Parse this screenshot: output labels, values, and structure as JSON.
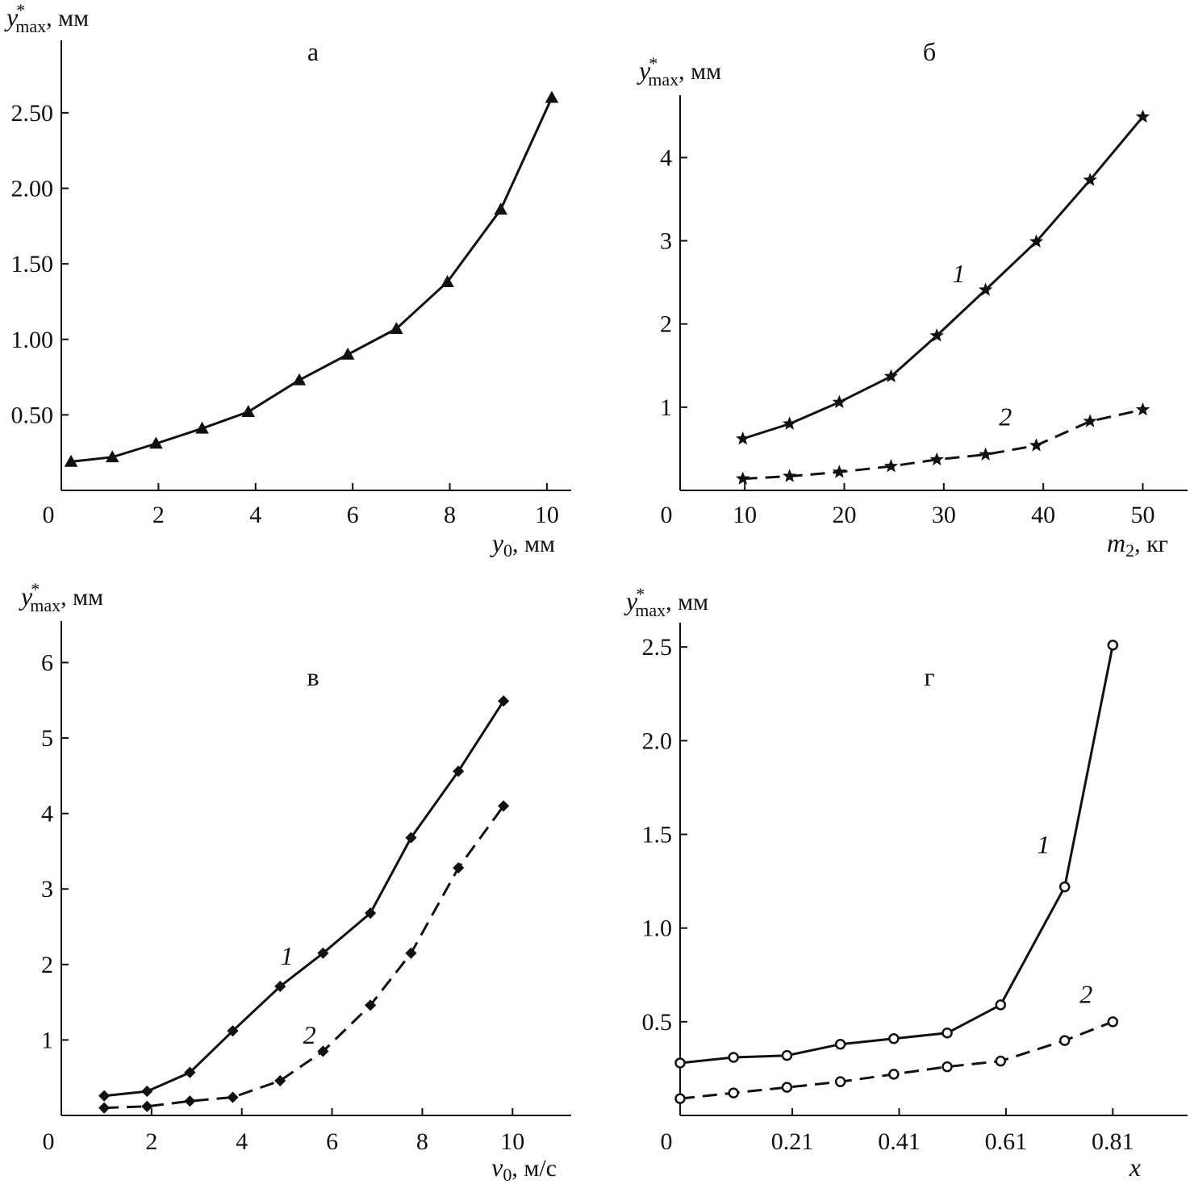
{
  "chart_data": [
    {
      "id": "a",
      "type": "line",
      "panel_letter": "а",
      "ylabel": {
        "var": "y",
        "sup": "*",
        "sub": "max",
        "unit": ", мм"
      },
      "xlabel": {
        "var": "y",
        "sub": "0",
        "unit": ", мм"
      },
      "xlim": [
        0,
        10.5
      ],
      "ylim": [
        0,
        2.98
      ],
      "x_zero_label": "0",
      "xticks": [
        2,
        4,
        6,
        8,
        10
      ],
      "xtick_labels": [
        "2",
        "4",
        "6",
        "8",
        "10"
      ],
      "yticks": [
        0.5,
        1.0,
        1.5,
        2.0,
        2.5
      ],
      "ytick_labels": [
        "0.50",
        "1.00",
        "1.50",
        "2.00",
        "2.50"
      ],
      "series": [
        {
          "name": "",
          "style": "solid",
          "marker": "triangle",
          "x": [
            0.2,
            1.05,
            1.95,
            2.9,
            3.85,
            4.9,
            5.9,
            6.9,
            7.95,
            9.05,
            10.1
          ],
          "y": [
            0.19,
            0.22,
            0.31,
            0.41,
            0.52,
            0.73,
            0.9,
            1.07,
            1.38,
            1.86,
            2.6
          ]
        }
      ]
    },
    {
      "id": "b",
      "type": "line",
      "panel_letter": "б",
      "ylabel": {
        "var": "y",
        "sup": "*",
        "sub": "max",
        "unit": ", мм"
      },
      "xlabel": {
        "var": "m",
        "sub": "2",
        "unit": ", кг"
      },
      "xlim": [
        3.5,
        54.5
      ],
      "ylim": [
        0,
        4.75
      ],
      "x_zero_label": "0",
      "xticks": [
        10,
        20,
        30,
        40,
        50
      ],
      "xtick_labels": [
        "10",
        "20",
        "30",
        "40",
        "50"
      ],
      "yticks": [
        1,
        2,
        3,
        4
      ],
      "ytick_labels": [
        "1",
        "2",
        "3",
        "4"
      ],
      "series": [
        {
          "name": "1",
          "style": "solid",
          "marker": "star",
          "x": [
            9.8,
            14.5,
            19.5,
            24.7,
            29.3,
            34.2,
            39.3,
            44.7,
            50.0
          ],
          "y": [
            0.62,
            0.8,
            1.06,
            1.37,
            1.86,
            2.41,
            2.99,
            3.73,
            4.49
          ]
        },
        {
          "name": "2",
          "style": "dash",
          "marker": "star",
          "x": [
            9.8,
            14.5,
            19.5,
            24.7,
            29.3,
            34.2,
            39.3,
            44.7,
            50.0
          ],
          "y": [
            0.14,
            0.17,
            0.22,
            0.29,
            0.37,
            0.43,
            0.54,
            0.83,
            0.97
          ]
        }
      ],
      "curve_label_pos": [
        [
          31.5,
          2.5
        ],
        [
          36.2,
          0.78
        ]
      ]
    },
    {
      "id": "c",
      "type": "line",
      "panel_letter": "в",
      "ylabel": {
        "var": "y",
        "sup": "*",
        "sub": "max",
        "unit": ", мм"
      },
      "xlabel": {
        "var": "v",
        "sub": "0",
        "unit": ", м/с"
      },
      "xlim": [
        0,
        11.3
      ],
      "ylim": [
        0,
        6.55
      ],
      "x_zero_label": "0",
      "xticks": [
        2,
        4,
        6,
        8,
        10
      ],
      "xtick_labels": [
        "2",
        "4",
        "6",
        "8",
        "10"
      ],
      "yticks": [
        1,
        2,
        3,
        4,
        5,
        6
      ],
      "ytick_labels": [
        "1",
        "2",
        "3",
        "4",
        "5",
        "6"
      ],
      "series": [
        {
          "name": "1",
          "style": "solid",
          "marker": "diamond",
          "x": [
            0.95,
            1.9,
            2.85,
            3.8,
            4.85,
            5.8,
            6.85,
            7.75,
            8.8,
            9.8
          ],
          "y": [
            0.26,
            0.32,
            0.57,
            1.12,
            1.71,
            2.15,
            2.68,
            3.68,
            4.56,
            5.49
          ]
        },
        {
          "name": "2",
          "style": "dash",
          "marker": "diamond",
          "x": [
            0.95,
            1.9,
            2.85,
            3.8,
            4.85,
            5.8,
            6.85,
            7.75,
            8.8,
            9.8
          ],
          "y": [
            0.1,
            0.12,
            0.19,
            0.24,
            0.46,
            0.85,
            1.46,
            2.15,
            3.28,
            4.1
          ]
        }
      ],
      "curve_label_pos": [
        [
          5.0,
          2.0
        ],
        [
          5.5,
          0.95
        ]
      ]
    },
    {
      "id": "d",
      "type": "line",
      "panel_letter": "г",
      "ylabel": {
        "var": "y",
        "sup": "*",
        "sub": "max",
        "unit": ", мм"
      },
      "xlabel": {
        "var": "x",
        "sub": "",
        "unit": ""
      },
      "xlim": [
        0,
        0.95
      ],
      "ylim": [
        0,
        2.63
      ],
      "x_zero_label": "0",
      "xticks": [
        0.21,
        0.41,
        0.61,
        0.81
      ],
      "xtick_labels": [
        "0.21",
        "0.41",
        "0.61",
        "0.81"
      ],
      "yticks": [
        0.5,
        1.0,
        1.5,
        2.0,
        2.5
      ],
      "ytick_labels": [
        "0.5",
        "1.0",
        "1.5",
        "2.0",
        "2.5"
      ],
      "series": [
        {
          "name": "1",
          "style": "solid",
          "marker": "circle",
          "x": [
            0.0,
            0.1,
            0.2,
            0.3,
            0.4,
            0.5,
            0.6,
            0.72,
            0.81
          ],
          "y": [
            0.28,
            0.31,
            0.32,
            0.38,
            0.41,
            0.44,
            0.59,
            1.22,
            2.51
          ]
        },
        {
          "name": "2",
          "style": "dash",
          "marker": "circle",
          "x": [
            0.0,
            0.1,
            0.2,
            0.3,
            0.4,
            0.5,
            0.6,
            0.72,
            0.81
          ],
          "y": [
            0.09,
            0.12,
            0.15,
            0.18,
            0.22,
            0.26,
            0.29,
            0.4,
            0.5
          ]
        }
      ],
      "curve_label_pos": [
        [
          0.68,
          1.4
        ],
        [
          0.76,
          0.6
        ]
      ]
    }
  ]
}
